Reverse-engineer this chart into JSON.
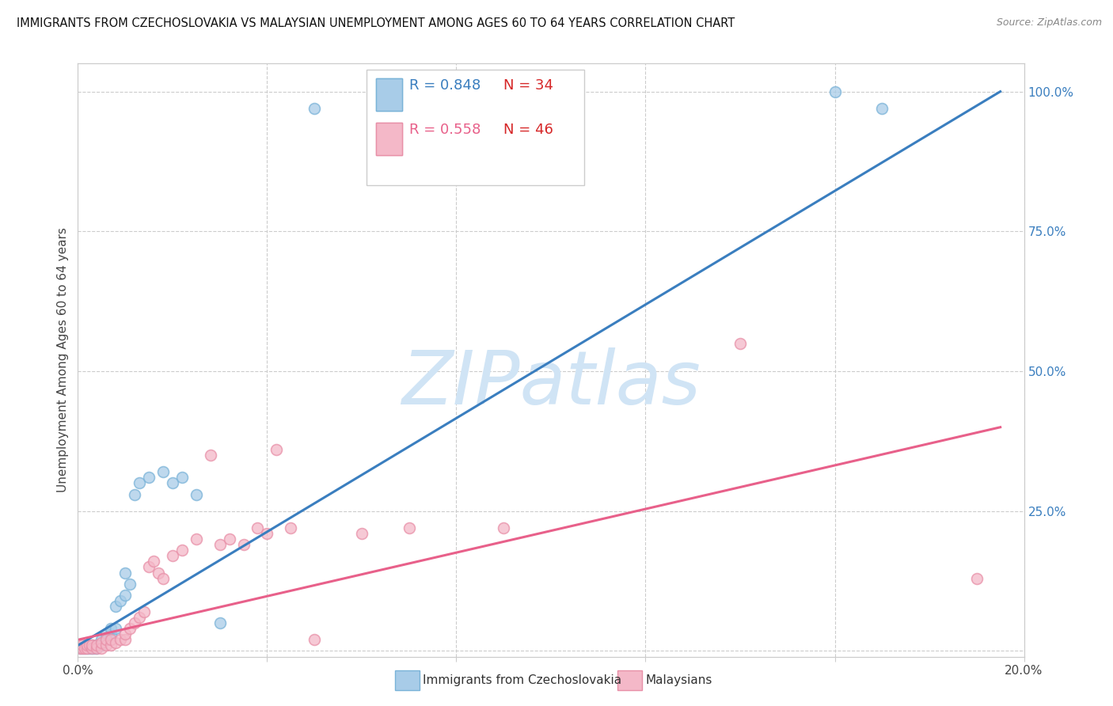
{
  "title": "IMMIGRANTS FROM CZECHOSLOVAKIA VS MALAYSIAN UNEMPLOYMENT AMONG AGES 60 TO 64 YEARS CORRELATION CHART",
  "source": "Source: ZipAtlas.com",
  "ylabel": "Unemployment Among Ages 60 to 64 years",
  "xlim": [
    0.0,
    0.2
  ],
  "ylim": [
    -0.01,
    1.05
  ],
  "x_ticks": [
    0.0,
    0.04,
    0.08,
    0.12,
    0.16,
    0.2
  ],
  "x_tick_labels": [
    "0.0%",
    "",
    "",
    "",
    "",
    "20.0%"
  ],
  "y_ticks_right": [
    0.0,
    0.25,
    0.5,
    0.75,
    1.0
  ],
  "y_tick_labels_right": [
    "",
    "25.0%",
    "50.0%",
    "75.0%",
    "100.0%"
  ],
  "legend_blue_r": "R = 0.848",
  "legend_blue_n": "N = 34",
  "legend_pink_r": "R = 0.558",
  "legend_pink_n": "N = 46",
  "blue_color": "#a8cce8",
  "pink_color": "#f4b8c8",
  "blue_edge_color": "#7ab3d8",
  "pink_edge_color": "#e890a8",
  "blue_line_color": "#3a7ebf",
  "pink_line_color": "#e8608a",
  "blue_text_color": "#3a7ebf",
  "pink_text_color": "#e8608a",
  "red_text_color": "#d62728",
  "watermark": "ZIPatlas",
  "watermark_color": "#d0e4f5",
  "background_color": "#ffffff",
  "blue_scatter_x": [
    0.0005,
    0.001,
    0.0015,
    0.002,
    0.0025,
    0.003,
    0.003,
    0.0035,
    0.004,
    0.004,
    0.0045,
    0.005,
    0.005,
    0.006,
    0.006,
    0.007,
    0.007,
    0.008,
    0.008,
    0.009,
    0.01,
    0.01,
    0.011,
    0.012,
    0.013,
    0.015,
    0.018,
    0.02,
    0.022,
    0.025,
    0.03,
    0.05,
    0.16,
    0.17
  ],
  "blue_scatter_y": [
    0.005,
    0.005,
    0.005,
    0.005,
    0.005,
    0.005,
    0.01,
    0.005,
    0.005,
    0.01,
    0.01,
    0.01,
    0.02,
    0.02,
    0.03,
    0.03,
    0.04,
    0.04,
    0.08,
    0.09,
    0.1,
    0.14,
    0.12,
    0.28,
    0.3,
    0.31,
    0.32,
    0.3,
    0.31,
    0.28,
    0.05,
    0.97,
    1.0,
    0.97
  ],
  "pink_scatter_x": [
    0.0005,
    0.001,
    0.001,
    0.0015,
    0.002,
    0.002,
    0.0025,
    0.003,
    0.003,
    0.004,
    0.004,
    0.005,
    0.005,
    0.006,
    0.006,
    0.007,
    0.007,
    0.008,
    0.009,
    0.01,
    0.01,
    0.011,
    0.012,
    0.013,
    0.014,
    0.015,
    0.016,
    0.017,
    0.018,
    0.02,
    0.022,
    0.025,
    0.028,
    0.03,
    0.032,
    0.035,
    0.038,
    0.04,
    0.042,
    0.045,
    0.05,
    0.06,
    0.07,
    0.09,
    0.14,
    0.19
  ],
  "pink_scatter_y": [
    0.005,
    0.005,
    0.01,
    0.005,
    0.005,
    0.01,
    0.01,
    0.005,
    0.01,
    0.005,
    0.01,
    0.005,
    0.015,
    0.01,
    0.02,
    0.01,
    0.02,
    0.015,
    0.02,
    0.02,
    0.03,
    0.04,
    0.05,
    0.06,
    0.07,
    0.15,
    0.16,
    0.14,
    0.13,
    0.17,
    0.18,
    0.2,
    0.35,
    0.19,
    0.2,
    0.19,
    0.22,
    0.21,
    0.36,
    0.22,
    0.02,
    0.21,
    0.22,
    0.22,
    0.55,
    0.13
  ],
  "blue_trendline_x": [
    0.0,
    0.195
  ],
  "blue_trendline_y": [
    0.01,
    1.0
  ],
  "pink_trendline_x": [
    0.0,
    0.195
  ],
  "pink_trendline_y": [
    0.02,
    0.4
  ]
}
